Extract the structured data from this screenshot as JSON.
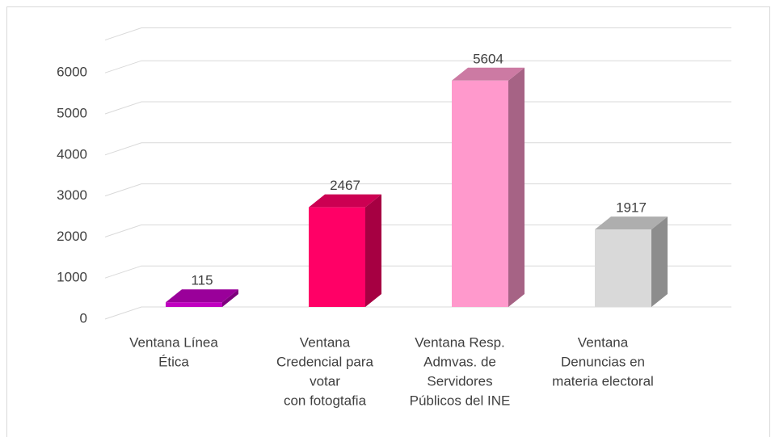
{
  "chart_data": {
    "type": "bar3d",
    "categories": [
      [
        "Ventana Línea",
        "Ética"
      ],
      [
        "Ventana",
        "Credencial para",
        "votar",
        "con fotogtafia"
      ],
      [
        "Ventana Resp.",
        "Admvas. de",
        "Servidores",
        "Públicos del INE"
      ],
      [
        "Ventana",
        "Denuncias en",
        "materia electoral"
      ]
    ],
    "values": [
      115,
      2467,
      5604,
      1917
    ],
    "colors": [
      "#c000c0",
      "#ff0066",
      "#ff99cc",
      "#d9d9d9"
    ],
    "ylim": [
      0,
      6800
    ],
    "yticks": [
      0,
      1000,
      2000,
      3000,
      4000,
      5000,
      6000
    ],
    "grid": true
  }
}
